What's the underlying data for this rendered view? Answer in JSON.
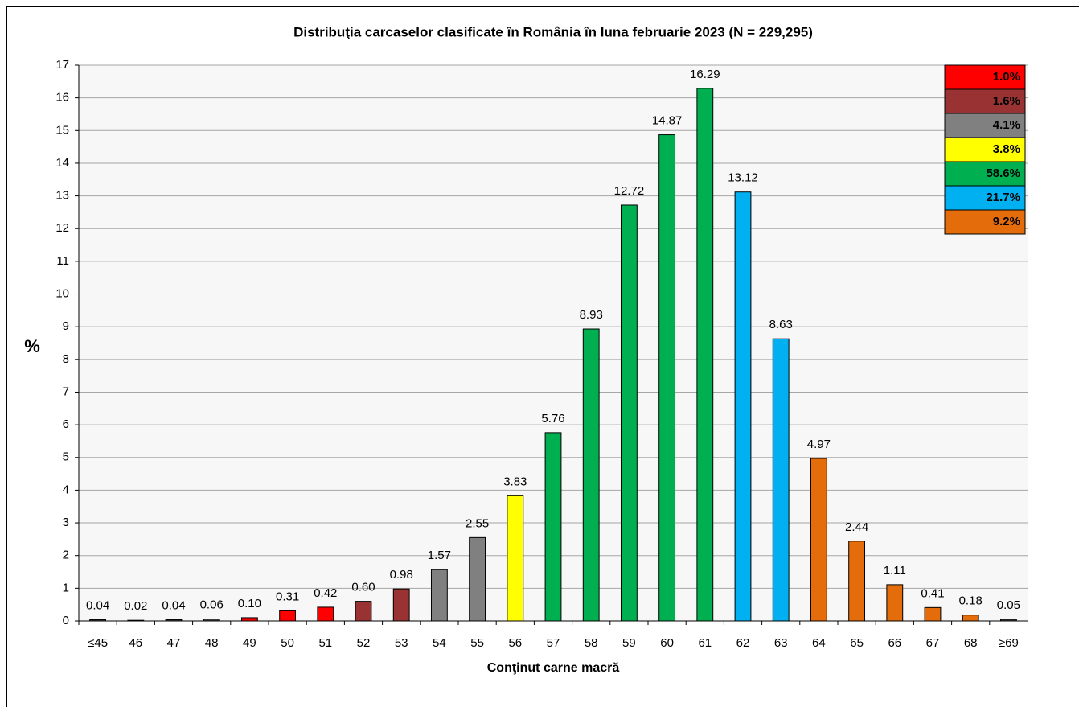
{
  "chart_data": {
    "type": "bar",
    "title": "Distribuţia carcaselor clasificate în România în luna februarie 2023 (N = 229,295)",
    "x_label": "Conţinut carne macră",
    "y_label": "%",
    "categories": [
      "≤45",
      "46",
      "47",
      "48",
      "49",
      "50",
      "51",
      "52",
      "53",
      "54",
      "55",
      "56",
      "57",
      "58",
      "59",
      "60",
      "61",
      "62",
      "63",
      "64",
      "65",
      "66",
      "67",
      "68",
      "≥69"
    ],
    "values": [
      0.04,
      0.02,
      0.04,
      0.06,
      0.1,
      0.31,
      0.42,
      0.6,
      0.98,
      1.57,
      2.55,
      3.83,
      5.76,
      8.93,
      12.72,
      14.87,
      16.29,
      13.12,
      8.63,
      4.97,
      2.44,
      1.11,
      0.41,
      0.18,
      0.05
    ],
    "value_labels": [
      "0.04",
      "0.02",
      "0.04",
      "0.06",
      "0.10",
      "0.31",
      "0.42",
      "0.60",
      "0.98",
      "1.57",
      "2.55",
      "3.83",
      "5.76",
      "8.93",
      "12.72",
      "14.87",
      "16.29",
      "13.12",
      "8.63",
      "4.97",
      "2.44",
      "1.11",
      "0.41",
      "0.18",
      "0.05"
    ],
    "colors": [
      "#404040",
      "#404040",
      "#404040",
      "#404040",
      "#ff0000",
      "#ff0000",
      "#ff0000",
      "#993333",
      "#993333",
      "#808080",
      "#808080",
      "#ffff00",
      "#00b050",
      "#00b050",
      "#00b050",
      "#00b050",
      "#00b050",
      "#00b0f0",
      "#00b0f0",
      "#e46c0a",
      "#e46c0a",
      "#e46c0a",
      "#e46c0a",
      "#e46c0a",
      "#404040"
    ],
    "legend": [
      {
        "label": "1.0%",
        "color": "#ff0000"
      },
      {
        "label": "1.6%",
        "color": "#993333"
      },
      {
        "label": "4.1%",
        "color": "#808080"
      },
      {
        "label": "3.8%",
        "color": "#ffff00"
      },
      {
        "label": "58.6%",
        "color": "#00b050"
      },
      {
        "label": "21.7%",
        "color": "#00b0f0"
      },
      {
        "label": "9.2%",
        "color": "#e46c0a"
      }
    ],
    "ylim": [
      0,
      17
    ],
    "yticks": [
      0,
      1,
      2,
      3,
      4,
      5,
      6,
      7,
      8,
      9,
      10,
      11,
      12,
      13,
      14,
      15,
      16,
      17
    ],
    "grid": true
  }
}
